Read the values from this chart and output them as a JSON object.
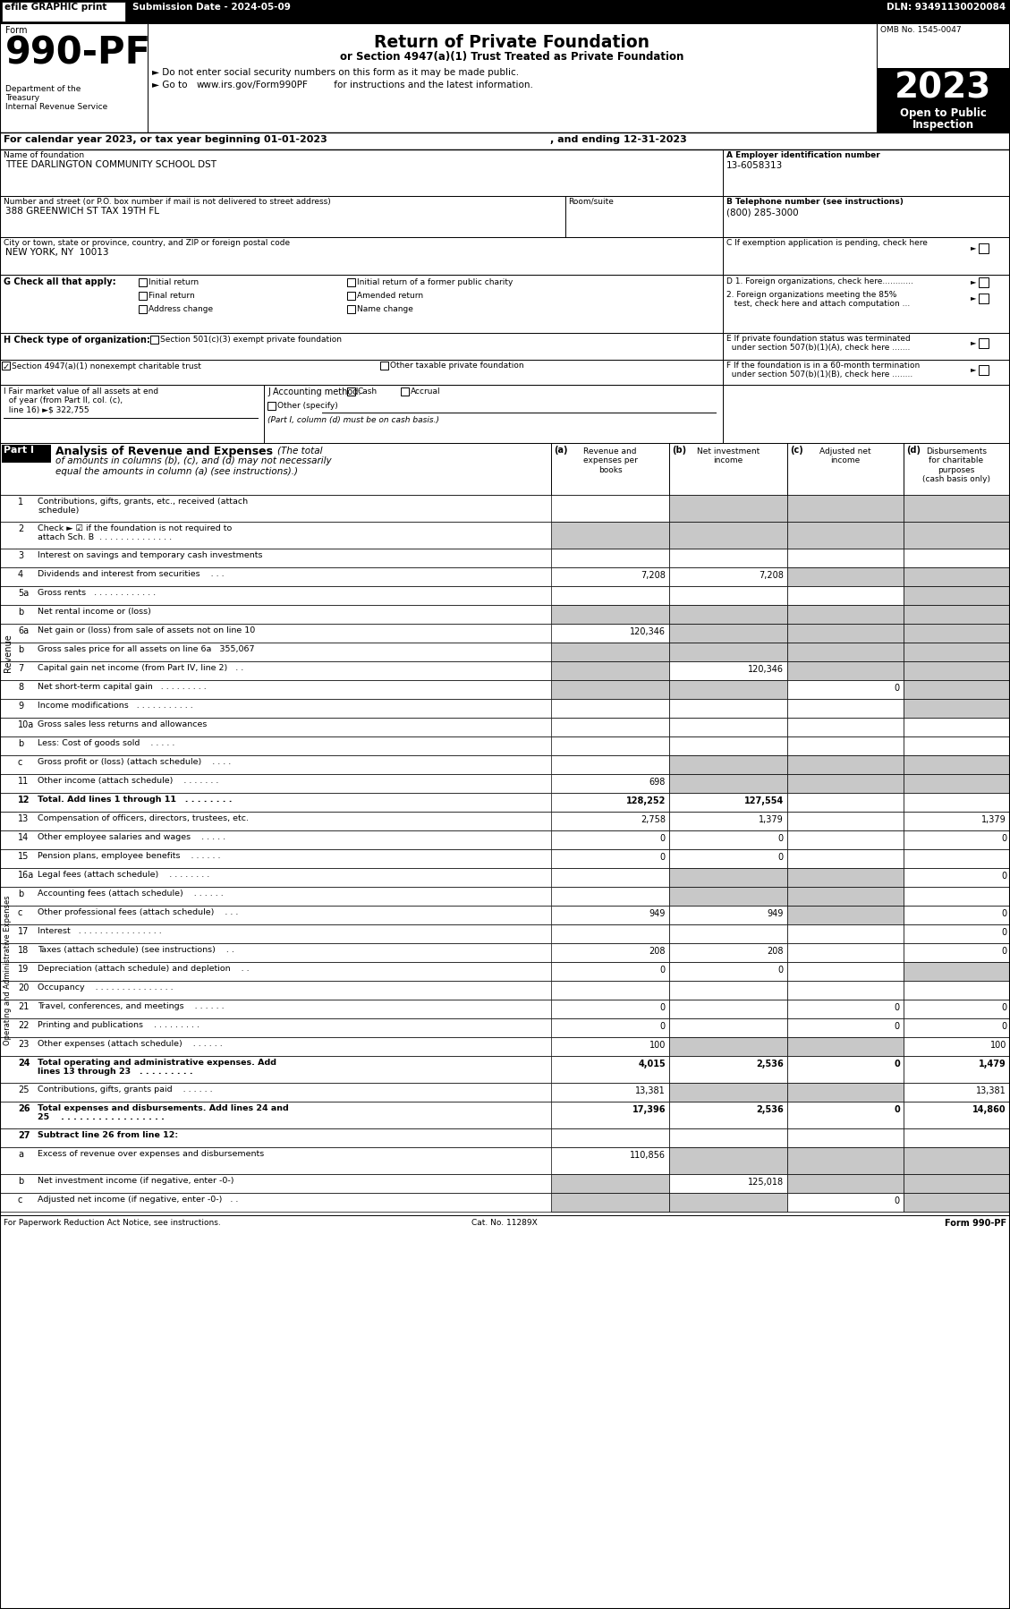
{
  "efile_text": "efile GRAPHIC print",
  "submission": "Submission Date - 2024-05-09",
  "dln": "DLN: 93491130020084",
  "form_label": "Form",
  "form_number": "990-PF",
  "title_main": "Return of Private Foundation",
  "title_sub": "or Section 4947(a)(1) Trust Treated as Private Foundation",
  "bullet1": "► Do not enter social security numbers on this form as it may be made public.",
  "bullet2": "► Go to www.irs.gov/Form990PF for instructions and the latest information.",
  "bullet2_url": "www.irs.gov/Form990PF",
  "omb": "OMB No. 1545-0047",
  "year": "2023",
  "open_line1": "Open to Public",
  "open_line2": "Inspection",
  "dept1": "Department of the",
  "dept2": "Treasury",
  "dept3": "Internal Revenue Service",
  "cal_year_line": "For calendar year 2023, or tax year beginning 01-01-2023",
  "ending_line": ", and ending 12-31-2023",
  "name_label": "Name of foundation",
  "name_value": "TTEE DARLINGTON COMMUNITY SCHOOL DST",
  "ein_label": "A Employer identification number",
  "ein_value": "13-6058313",
  "addr_label": "Number and street (or P.O. box number if mail is not delivered to street address)",
  "addr_value": "388 GREENWICH ST TAX 19TH FL",
  "room_label": "Room/suite",
  "phone_label": "B Telephone number (see instructions)",
  "phone_value": "(800) 285-3000",
  "city_label": "City or town, state or province, country, and ZIP or foreign postal code",
  "city_value": "NEW YORK, NY  10013",
  "c_label": "C If exemption application is pending, check here",
  "g_label": "G Check all that apply:",
  "d1_label": "D 1. Foreign organizations, check here............",
  "d2_line1": "2. Foreign organizations meeting the 85%",
  "d2_line2": "   test, check here and attach computation ...",
  "e_line1": "E If private foundation status was terminated",
  "e_line2": "  under section 507(b)(1)(A), check here .......",
  "h_label": "H Check type of organization:",
  "h_opt1": "Section 501(c)(3) exempt private foundation",
  "h_opt2_checked": true,
  "h_opt2": "Section 4947(a)(1) nonexempt charitable trust",
  "h_opt3": "Other taxable private foundation",
  "f_line1": "F If the foundation is in a 60-month termination",
  "f_line2": "  under section 507(b)(1)(B), check here ........",
  "i_line1": "I Fair market value of all assets at end",
  "i_line2": "  of year (from Part II, col. (c),",
  "i_line3": "  line 16) ►$ 322,755",
  "j_label": "J Accounting method:",
  "j_cash": "Cash",
  "j_accrual": "Accrual",
  "j_other": "Other (specify)",
  "j_note": "(Part I, column (d) must be on cash basis.)",
  "part1_label": "Part I",
  "part1_title": "Analysis of Revenue and Expenses",
  "part1_italic": "(The total",
  "part1_italic2": "of amounts in columns (b), (c), and (d) may not necessarily",
  "part1_italic3": "equal the amounts in column (a) (see instructions).)",
  "col_a_label": "(a)",
  "col_a_text": "Revenue and\nexpenses per\nbooks",
  "col_b_label": "(b)",
  "col_b_text": "Net investment\nincome",
  "col_c_label": "(c)",
  "col_c_text": "Adjusted net\nincome",
  "col_d_label": "(d)",
  "col_d_text": "Disbursements\nfor charitable\npurposes\n(cash basis only)",
  "revenue_rows": [
    {
      "num": "1",
      "label": "Contributions, gifts, grants, etc., received (attach schedule)",
      "a": "",
      "b": "",
      "c": "",
      "d": "",
      "shaded": [
        false,
        true,
        true,
        true
      ],
      "tall": true
    },
    {
      "num": "2",
      "label": "Check ► ☑ if the foundation is not required to attach Sch. B  . . . . . . . . . . . . . .",
      "a": "",
      "b": "",
      "c": "",
      "d": "",
      "shaded": [
        true,
        true,
        true,
        true
      ],
      "tall": true
    },
    {
      "num": "3",
      "label": "Interest on savings and temporary cash investments",
      "a": "",
      "b": "",
      "c": "",
      "d": "",
      "shaded": [
        false,
        false,
        false,
        false
      ],
      "tall": false
    },
    {
      "num": "4",
      "label": "Dividends and interest from securities    . . .",
      "a": "7,208",
      "b": "7,208",
      "c": "",
      "d": "",
      "shaded": [
        false,
        false,
        true,
        true
      ],
      "tall": false
    },
    {
      "num": "5a",
      "label": "Gross rents   . . . . . . . . . . . .",
      "a": "",
      "b": "",
      "c": "",
      "d": "",
      "shaded": [
        false,
        false,
        false,
        true
      ],
      "tall": false
    },
    {
      "num": "b",
      "label": "Net rental income or (loss)",
      "a": "",
      "b": "",
      "c": "",
      "d": "",
      "shaded": [
        true,
        true,
        true,
        true
      ],
      "tall": false,
      "underline_label": true
    },
    {
      "num": "6a",
      "label": "Net gain or (loss) from sale of assets not on line 10",
      "a": "120,346",
      "b": "",
      "c": "",
      "d": "",
      "shaded": [
        false,
        true,
        true,
        true
      ],
      "tall": false
    },
    {
      "num": "b",
      "label": "Gross sales price for all assets on line 6a   355,067",
      "a": "",
      "b": "",
      "c": "",
      "d": "",
      "shaded": [
        true,
        true,
        true,
        true
      ],
      "tall": false
    },
    {
      "num": "7",
      "label": "Capital gain net income (from Part IV, line 2)   . .",
      "a": "",
      "b": "120,346",
      "c": "",
      "d": "",
      "shaded": [
        true,
        false,
        true,
        true
      ],
      "tall": false
    },
    {
      "num": "8",
      "label": "Net short-term capital gain   . . . . . . . . .",
      "a": "",
      "b": "",
      "c": "0",
      "d": "",
      "shaded": [
        true,
        true,
        false,
        true
      ],
      "tall": false
    },
    {
      "num": "9",
      "label": "Income modifications   . . . . . . . . . . .",
      "a": "",
      "b": "",
      "c": "",
      "d": "",
      "shaded": [
        false,
        false,
        false,
        true
      ],
      "tall": false
    },
    {
      "num": "10a",
      "label": "Gross sales less returns and allowances",
      "a": "",
      "b": "",
      "c": "",
      "d": "",
      "shaded": [
        false,
        false,
        false,
        false
      ],
      "tall": false,
      "underline_label": true
    },
    {
      "num": "b",
      "label": "Less: Cost of goods sold    . . . . .",
      "a": "",
      "b": "",
      "c": "",
      "d": "",
      "shaded": [
        false,
        false,
        false,
        false
      ],
      "tall": false
    },
    {
      "num": "c",
      "label": "Gross profit or (loss) (attach schedule)    . . . .",
      "a": "",
      "b": "",
      "c": "",
      "d": "",
      "shaded": [
        false,
        true,
        true,
        true
      ],
      "tall": false
    },
    {
      "num": "11",
      "label": "Other income (attach schedule)    . . . . . . .",
      "a": "698",
      "b": "",
      "c": "",
      "d": "",
      "shaded": [
        false,
        true,
        true,
        true
      ],
      "tall": false
    },
    {
      "num": "12",
      "label": "Total. Add lines 1 through 11   . . . . . . . .",
      "a": "128,252",
      "b": "127,554",
      "c": "",
      "d": "",
      "shaded": [
        false,
        false,
        false,
        false
      ],
      "tall": false,
      "bold": true
    }
  ],
  "expense_rows": [
    {
      "num": "13",
      "label": "Compensation of officers, directors, trustees, etc.",
      "a": "2,758",
      "b": "1,379",
      "c": "",
      "d": "1,379",
      "shaded": [
        false,
        false,
        false,
        false
      ],
      "tall": false
    },
    {
      "num": "14",
      "label": "Other employee salaries and wages    . . . . .",
      "a": "0",
      "b": "0",
      "c": "",
      "d": "0",
      "shaded": [
        false,
        false,
        false,
        false
      ],
      "tall": false
    },
    {
      "num": "15",
      "label": "Pension plans, employee benefits    . . . . . .",
      "a": "0",
      "b": "0",
      "c": "",
      "d": "",
      "shaded": [
        false,
        false,
        false,
        false
      ],
      "tall": false
    },
    {
      "num": "16a",
      "label": "Legal fees (attach schedule)    . . . . . . . .",
      "a": "",
      "b": "",
      "c": "",
      "d": "0",
      "shaded": [
        false,
        true,
        true,
        false
      ],
      "tall": false
    },
    {
      "num": "b",
      "label": "Accounting fees (attach schedule)    . . . . . .",
      "a": "",
      "b": "",
      "c": "",
      "d": "",
      "shaded": [
        false,
        true,
        true,
        false
      ],
      "tall": false
    },
    {
      "num": "c",
      "label": "Other professional fees (attach schedule)    . . .",
      "a": "949",
      "b": "949",
      "c": "",
      "d": "0",
      "shaded": [
        false,
        false,
        true,
        false
      ],
      "tall": false
    },
    {
      "num": "17",
      "label": "Interest   . . . . . . . . . . . . . . . .",
      "a": "",
      "b": "",
      "c": "",
      "d": "0",
      "shaded": [
        false,
        false,
        false,
        false
      ],
      "tall": false
    },
    {
      "num": "18",
      "label": "Taxes (attach schedule) (see instructions)    . .",
      "a": "208",
      "b": "208",
      "c": "",
      "d": "0",
      "shaded": [
        false,
        false,
        false,
        false
      ],
      "tall": false
    },
    {
      "num": "19",
      "label": "Depreciation (attach schedule) and depletion    . .",
      "a": "0",
      "b": "0",
      "c": "",
      "d": "",
      "shaded": [
        false,
        false,
        false,
        true
      ],
      "tall": false
    },
    {
      "num": "20",
      "label": "Occupancy    . . . . . . . . . . . . . . .",
      "a": "",
      "b": "",
      "c": "",
      "d": "",
      "shaded": [
        false,
        false,
        false,
        false
      ],
      "tall": false
    },
    {
      "num": "21",
      "label": "Travel, conferences, and meetings    . . . . . .",
      "a": "0",
      "b": "",
      "c": "0",
      "d": "0",
      "shaded": [
        false,
        false,
        false,
        false
      ],
      "tall": false
    },
    {
      "num": "22",
      "label": "Printing and publications    . . . . . . . . .",
      "a": "0",
      "b": "",
      "c": "0",
      "d": "0",
      "shaded": [
        false,
        false,
        false,
        false
      ],
      "tall": false
    },
    {
      "num": "23",
      "label": "Other expenses (attach schedule)    . . . . . .",
      "a": "100",
      "b": "",
      "c": "",
      "d": "100",
      "shaded": [
        false,
        true,
        true,
        false
      ],
      "tall": false
    },
    {
      "num": "24",
      "label": "Total operating and administrative expenses. Add lines 13 through 23   . . . . . . . . .",
      "a": "4,015",
      "b": "2,536",
      "c": "0",
      "d": "1,479",
      "shaded": [
        false,
        false,
        false,
        false
      ],
      "tall": true,
      "bold": true
    },
    {
      "num": "25",
      "label": "Contributions, gifts, grants paid    . . . . . .",
      "a": "13,381",
      "b": "",
      "c": "",
      "d": "13,381",
      "shaded": [
        false,
        true,
        true,
        false
      ],
      "tall": false
    },
    {
      "num": "26",
      "label": "Total expenses and disbursements. Add lines 24 and 25    . . . . . . . . . . . . . . . . .",
      "a": "17,396",
      "b": "2,536",
      "c": "0",
      "d": "14,860",
      "shaded": [
        false,
        false,
        false,
        false
      ],
      "tall": true,
      "bold": true
    }
  ],
  "subtract_rows": [
    {
      "num": "27",
      "label": "Subtract line 26 from line 12:",
      "a": "",
      "b": "",
      "c": "",
      "d": "",
      "shaded": [
        false,
        false,
        false,
        false
      ],
      "tall": false,
      "bold": true
    },
    {
      "num": "a",
      "label": "Excess of revenue over expenses and disbursements",
      "a": "110,856",
      "b": "",
      "c": "",
      "d": "",
      "shaded": [
        false,
        true,
        true,
        true
      ],
      "tall": true
    },
    {
      "num": "b",
      "label": "Net investment income (if negative, enter -0-)",
      "a": "",
      "b": "125,018",
      "c": "",
      "d": "",
      "shaded": [
        true,
        false,
        true,
        true
      ],
      "tall": false
    },
    {
      "num": "c",
      "label": "Adjusted net income (if negative, enter -0-)   . .",
      "a": "",
      "b": "",
      "c": "0",
      "d": "",
      "shaded": [
        true,
        true,
        false,
        true
      ],
      "tall": false
    }
  ],
  "footer_left": "For Paperwork Reduction Act Notice, see instructions.",
  "footer_cat": "Cat. No. 11289X",
  "footer_right": "Form 990-PF",
  "shaded_color": "#c8c8c8"
}
